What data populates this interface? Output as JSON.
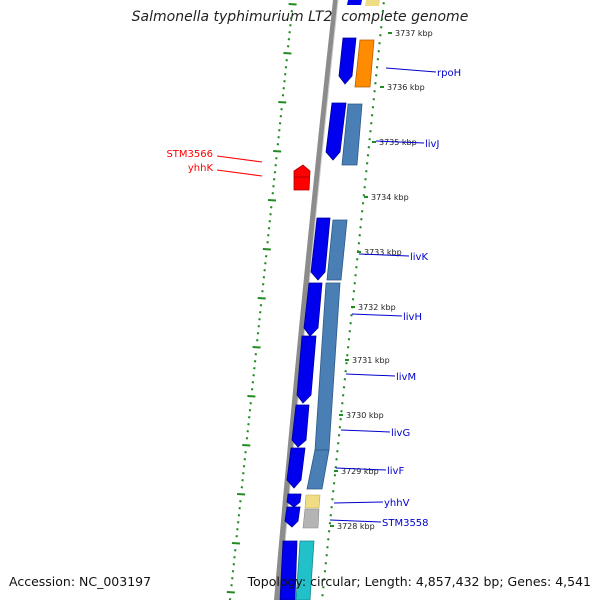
{
  "title": "Salmonella typhimurium LT2, complete genome",
  "accession": "Accession: NC_003197",
  "topology": "Topology: circular; Length: 4,857,432 bp; Genes: 4,541",
  "colors": {
    "backbone": "#8c8c8c",
    "forward_gene": "#0000ee",
    "reverse_gene": "#4a7fb5",
    "gene_label": "#0000cc",
    "highlight": "#ff0000",
    "tick": "#228b22",
    "orange": "#ff8c00",
    "khaki": "#f0dc82",
    "gray": "#b4b4b4",
    "cyan": "#22c0c8"
  },
  "scale_labels": [
    "3737 kbp",
    "3736 kbp",
    "3735 kbp",
    "3734 kbp",
    "3733 kbp",
    "3732 kbp",
    "3731 kbp",
    "3730 kbp",
    "3729 kbp",
    "3728 kbp"
  ],
  "genes": [
    {
      "label": "rpoH",
      "color": "#0000cc"
    },
    {
      "label": "livJ",
      "color": "#0000cc"
    },
    {
      "label": "livK",
      "color": "#0000cc"
    },
    {
      "label": "livH",
      "color": "#0000cc"
    },
    {
      "label": "livM",
      "color": "#0000cc"
    },
    {
      "label": "livG",
      "color": "#0000cc"
    },
    {
      "label": "livF",
      "color": "#0000cc"
    },
    {
      "label": "yhhV",
      "color": "#0000cc"
    },
    {
      "label": "STM3558",
      "color": "#0000cc"
    }
  ],
  "highlight_genes": [
    {
      "label": "STM3566"
    },
    {
      "label": "yhhK"
    }
  ]
}
